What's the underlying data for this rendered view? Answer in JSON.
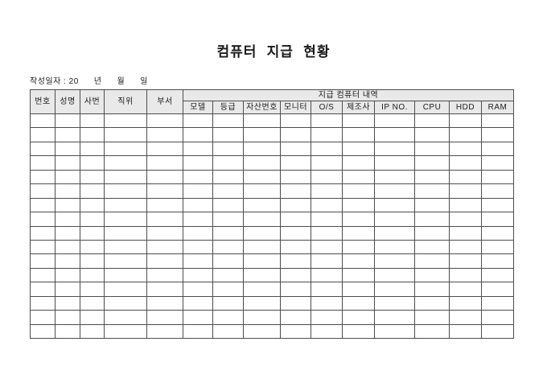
{
  "page": {
    "title": "컴퓨터 지급 현황"
  },
  "date_line": {
    "prefix": "작성일자 : 20",
    "year_label": "년",
    "month_label": "월",
    "day_label": "일"
  },
  "table": {
    "group_header": "지급 컴퓨터 내역",
    "person_columns": [
      "번호",
      "성명",
      "사번",
      "직위",
      "부서"
    ],
    "computer_columns": [
      "모델",
      "등급",
      "자산번호",
      "모니터",
      "O/S",
      "제조사",
      "IP NO.",
      "CPU",
      "HDD",
      "RAM"
    ],
    "empty_body_rows": 16,
    "colors": {
      "header_bg": "#e9e9e9",
      "border": "#4d4d4d",
      "text": "#1a1a1a"
    }
  }
}
